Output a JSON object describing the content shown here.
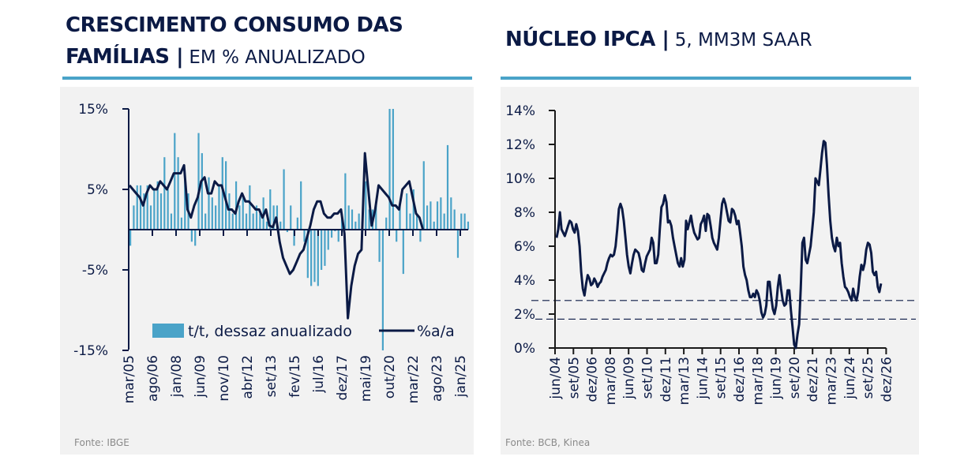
{
  "colors": {
    "navy": "#0b1a45",
    "bar_blue": "#4aa3c8",
    "panel_bg": "#f2f2f2",
    "rule_blue": "#4aa3c8",
    "source_gray": "#8a8a8a"
  },
  "left": {
    "title_bold_1": "CRESCIMENTO CONSUMO DAS",
    "title_bold_2": "FAMÍLIAS |",
    "title_light": " EM % ANUALIZADO",
    "source": "Fonte: IBGE"
  },
  "right": {
    "title_bold": "NÚCLEO IPCA |",
    "title_light": " 5, MM3M SAAR",
    "source": "Fonte: BCB, Kinea"
  },
  "chart_data": [
    {
      "type": "bar+line",
      "title": "CRESCIMENTO CONSUMO DAS FAMÍLIAS | EM % ANUALIZADO",
      "ylim": [
        -15,
        15
      ],
      "yticks": [
        15,
        5,
        -5,
        -15
      ],
      "ytick_labels": [
        "15%",
        "5%",
        "-5%",
        "-15%"
      ],
      "xtick_labels": [
        "mar/05",
        "ago/06",
        "jan/08",
        "jun/09",
        "nov/10",
        "abr/12",
        "set/13",
        "fev/15",
        "jul/16",
        "dez/17",
        "mai/19",
        "out/20",
        "mar/22",
        "ago/23",
        "jan/25"
      ],
      "legend": {
        "position": "bottom-right",
        "entries": [
          "t/t, dessaz anualizado",
          "%a/a"
        ]
      },
      "frequency": "quarterly",
      "start": "2005Q1",
      "series": [
        {
          "name": "t/t, dessaz anualizado",
          "kind": "bar",
          "values": [
            -2.0,
            3.0,
            5.5,
            5.5,
            4.5,
            5.5,
            3.0,
            5.0,
            6.0,
            4.5,
            9.0,
            5.0,
            2.0,
            12.0,
            9.0,
            1.5,
            7.0,
            4.5,
            -1.5,
            -2.0,
            12.0,
            9.5,
            2.0,
            6.5,
            4.0,
            3.0,
            5.5,
            9.0,
            8.5,
            4.5,
            2.0,
            6.0,
            3.0,
            4.0,
            2.0,
            5.5,
            2.0,
            3.0,
            2.0,
            4.0,
            1.0,
            5.0,
            3.0,
            3.0,
            1.0,
            7.5,
            -0.3,
            3.0,
            -2.0,
            1.5,
            6.0,
            -1.5,
            -6.0,
            -7.0,
            -6.5,
            -7.0,
            -5.0,
            -4.5,
            -2.5,
            -1.0,
            -0.2,
            -1.5,
            2.0,
            7.0,
            3.0,
            2.5,
            1.0,
            2.0,
            1.0,
            6.0,
            2.5,
            2.5,
            3.0,
            -4.0,
            -15.0,
            1.5,
            15.0,
            15.0,
            -1.5,
            3.0,
            -5.5,
            4.5,
            2.0,
            5.0,
            2.0,
            -1.5,
            8.5,
            3.0,
            3.5,
            1.0,
            3.5,
            4.0,
            2.0,
            10.5,
            4.0,
            2.5,
            -3.5,
            2.0,
            2.0,
            1.0
          ]
        },
        {
          "name": "%a/a",
          "kind": "line",
          "values": [
            5.5,
            5.0,
            4.5,
            4.0,
            3.0,
            4.5,
            5.5,
            5.0,
            5.0,
            6.0,
            5.5,
            5.0,
            6.0,
            7.0,
            7.0,
            7.0,
            8.0,
            2.5,
            1.5,
            3.0,
            4.0,
            6.0,
            6.5,
            4.5,
            4.5,
            6.0,
            5.5,
            5.5,
            4.0,
            2.5,
            2.5,
            2.0,
            3.5,
            4.5,
            3.5,
            3.5,
            3.0,
            2.5,
            2.5,
            1.5,
            2.5,
            0.5,
            0.3,
            1.5,
            -1.5,
            -3.5,
            -4.5,
            -5.5,
            -5.0,
            -4.0,
            -3.0,
            -2.5,
            -1.0,
            0.5,
            2.5,
            3.5,
            3.5,
            2.0,
            1.5,
            1.5,
            2.0,
            2.0,
            2.5,
            -0.5,
            -11.0,
            -7.0,
            -4.5,
            -3.0,
            -2.5,
            9.5,
            5.0,
            0.5,
            2.5,
            5.5,
            5.0,
            4.5,
            4.0,
            3.0,
            3.0,
            2.5,
            5.0,
            5.5,
            6.0,
            4.0,
            2.0,
            1.5,
            0.0
          ]
        }
      ]
    },
    {
      "type": "line",
      "title": "NÚCLEO IPCA | 5, MM3M SAAR",
      "ylim": [
        0,
        14
      ],
      "yticks": [
        0,
        2,
        4,
        6,
        8,
        10,
        12,
        14
      ],
      "ytick_labels": [
        "0%",
        "2%",
        "4%",
        "6%",
        "8%",
        "10%",
        "12%",
        "14%"
      ],
      "xtick_labels": [
        "jun/04",
        "set/05",
        "dez/06",
        "mar/08",
        "jun/09",
        "set/10",
        "dez/11",
        "mar/13",
        "jun/14",
        "set/15",
        "dez/16",
        "mar/18",
        "jun/19",
        "set/20",
        "dez/21",
        "mar/23",
        "jun/24",
        "set/25",
        "dez/26"
      ],
      "frequency": "monthly",
      "start": "2004-06",
      "reference_lines": [
        2.8,
        1.7
      ],
      "series": [
        {
          "name": "Núcleo IPCA",
          "values": [
            6.5,
            7.0,
            8.0,
            7.0,
            6.8,
            6.6,
            6.9,
            7.2,
            7.5,
            7.4,
            7.0,
            6.8,
            7.3,
            6.9,
            6.0,
            4.5,
            3.5,
            3.1,
            3.8,
            4.3,
            4.1,
            3.7,
            3.8,
            4.1,
            3.9,
            3.6,
            3.8,
            3.9,
            4.2,
            4.4,
            4.6,
            5.0,
            5.3,
            5.5,
            5.4,
            5.5,
            6.0,
            7.0,
            8.2,
            8.5,
            8.2,
            7.5,
            6.5,
            5.5,
            4.8,
            4.4,
            5.0,
            5.5,
            5.8,
            5.7,
            5.6,
            5.2,
            4.6,
            4.5,
            5.0,
            5.4,
            5.6,
            5.8,
            6.5,
            6.2,
            5.0,
            5.0,
            5.5,
            7.0,
            8.3,
            8.5,
            9.0,
            8.6,
            7.4,
            7.5,
            7.2,
            6.5,
            6.0,
            5.5,
            5.0,
            4.8,
            5.3,
            4.8,
            5.2,
            7.5,
            7.0,
            7.4,
            7.8,
            7.2,
            6.8,
            6.6,
            6.4,
            6.5,
            7.3,
            7.5,
            7.8,
            6.9,
            7.9,
            7.8,
            7.2,
            6.5,
            6.2,
            6.0,
            5.8,
            6.5,
            7.5,
            8.5,
            8.8,
            8.5,
            8.0,
            7.5,
            7.4,
            8.2,
            8.1,
            7.8,
            7.3,
            7.5,
            6.8,
            6.0,
            4.8,
            4.3,
            4.0,
            3.4,
            3.0,
            3.0,
            3.2,
            3.0,
            3.4,
            3.2,
            2.8,
            2.1,
            1.8,
            2.0,
            2.5,
            3.9,
            3.9,
            3.0,
            2.3,
            2.0,
            2.5,
            3.6,
            4.3,
            3.5,
            2.8,
            2.5,
            2.6,
            3.4,
            3.4,
            2.2,
            1.2,
            0.2,
            0.0,
            0.8,
            1.4,
            3.5,
            6.2,
            6.5,
            5.2,
            5.0,
            5.5,
            6.0,
            7.0,
            8.0,
            10.0,
            9.8,
            9.6,
            10.5,
            11.5,
            12.2,
            12.1,
            10.8,
            9.0,
            7.5,
            6.5,
            6.0,
            5.7,
            6.5,
            6.0,
            6.2,
            5.0,
            4.2,
            3.6,
            3.5,
            3.3,
            3.0,
            2.8,
            3.5,
            3.0,
            2.8,
            3.3,
            4.2,
            4.9,
            4.6,
            5.0,
            5.8,
            6.2,
            6.1,
            5.6,
            4.5,
            4.3,
            4.5,
            3.6,
            3.3,
            3.8
          ]
        }
      ]
    }
  ]
}
